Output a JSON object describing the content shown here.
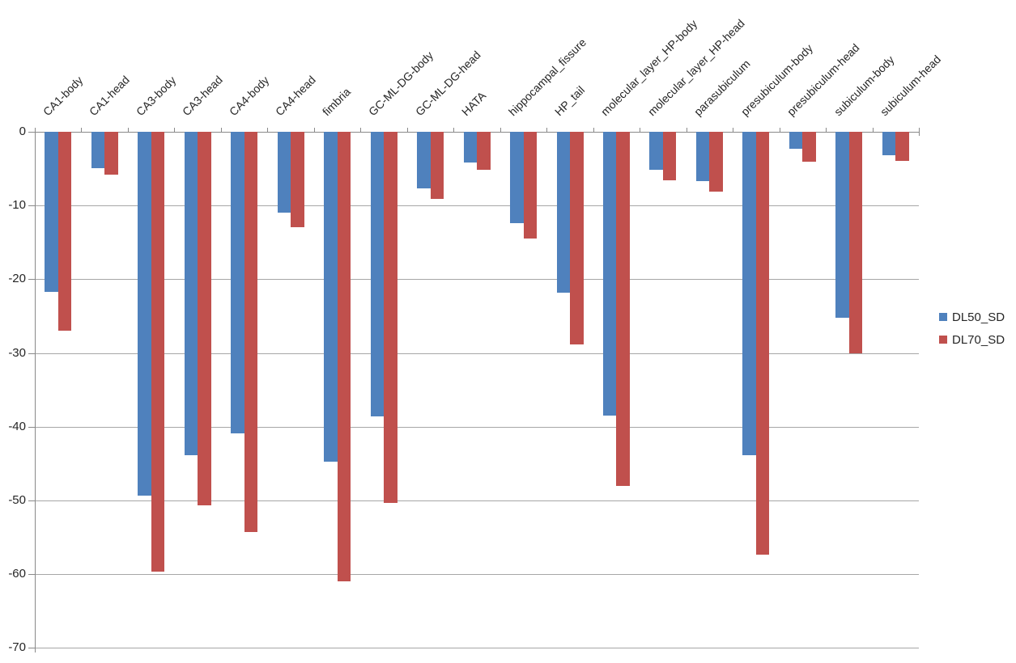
{
  "chart_data": {
    "type": "bar",
    "orientation": "vertical-clustered",
    "categories": [
      "CA1-body",
      "CA1-head",
      "CA3-body",
      "CA3-head",
      "CA4-body",
      "CA4-head",
      "fimbria",
      "GC-ML-DG-body",
      "GC-ML-DG-head",
      "HATA",
      "hippocampal_fissure",
      "HP_tail",
      "molecular_layer_HP-body",
      "molecular_layer_HP-head",
      "parasubiculum",
      "presubiculum-body",
      "presubiculum-head",
      "subiculum-body",
      "subiculum-head"
    ],
    "series": [
      {
        "name": "DL50_SD",
        "color": "#4F81BD",
        "values": [
          -21.7,
          -4.9,
          -49.3,
          -43.9,
          -40.9,
          -11.0,
          -44.7,
          -38.6,
          -7.7,
          -4.2,
          -12.4,
          -21.8,
          -38.5,
          -5.1,
          -6.7,
          -43.9,
          -2.3,
          -25.2,
          -3.2
        ]
      },
      {
        "name": "DL70_SD",
        "color": "#C0504D",
        "values": [
          -27.0,
          -5.8,
          -59.6,
          -50.6,
          -54.3,
          -12.9,
          -61.0,
          -50.3,
          -9.1,
          -5.2,
          -14.5,
          -28.8,
          -48.0,
          -6.6,
          -8.1,
          -57.3,
          -4.1,
          -30.0,
          -3.9
        ]
      }
    ],
    "xlabel": "",
    "ylabel": "",
    "ylim": [
      -70,
      0
    ],
    "yticks": [
      0,
      -10,
      -20,
      -30,
      -40,
      -50,
      -60,
      -70
    ],
    "grid": true,
    "legend_position": "right",
    "gridline_color": "#A6A6A6",
    "axis_color": "#898989",
    "label_color": "#262626"
  }
}
